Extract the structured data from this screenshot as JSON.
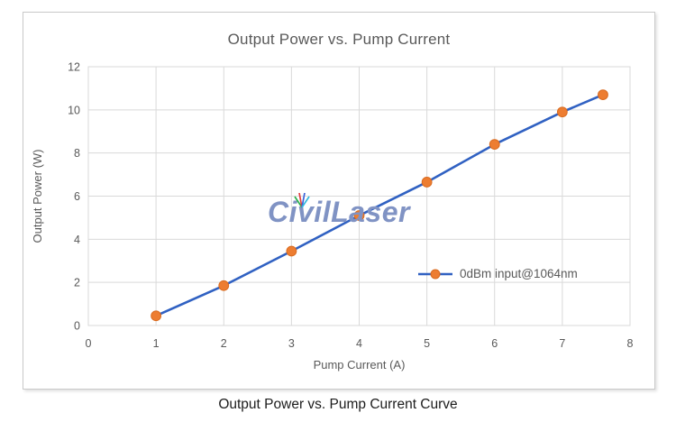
{
  "page": {
    "caption": "Output Power vs. Pump Current Curve"
  },
  "watermark": {
    "text": "CivilLaser",
    "color": "#8093C4",
    "fan_colors": [
      "#2BB14C",
      "#E0403F",
      "#3A62D8",
      "#35B7DD"
    ]
  },
  "chart_data": {
    "type": "line",
    "title": "Output Power vs. Pump Current",
    "xlabel": "Pump Current (A)",
    "ylabel": "Output Power (W)",
    "series_name": "0dBm input@1064nm",
    "x": [
      1,
      2,
      3,
      4,
      5,
      6,
      7,
      7.6
    ],
    "y": [
      0.45,
      1.85,
      3.45,
      5.1,
      6.65,
      8.4,
      9.9,
      10.7
    ],
    "xlim": [
      0,
      8
    ],
    "ylim": [
      0,
      12
    ],
    "x_ticks": [
      0,
      1,
      2,
      3,
      4,
      5,
      6,
      7,
      8
    ],
    "y_ticks": [
      0,
      2,
      4,
      6,
      8,
      10,
      12
    ],
    "grid": true,
    "legend_position": "inside-right",
    "colors": {
      "line": "#3061C2",
      "marker": "#ED7D31",
      "marker_border": "#D96B20",
      "grid": "#D9D9D9",
      "axis_line": "#BFBFBF",
      "axis_text": "#595959",
      "title_text": "#595959",
      "caption_text": "#1C1C1C",
      "frame_border": "#C9C9C9"
    }
  }
}
